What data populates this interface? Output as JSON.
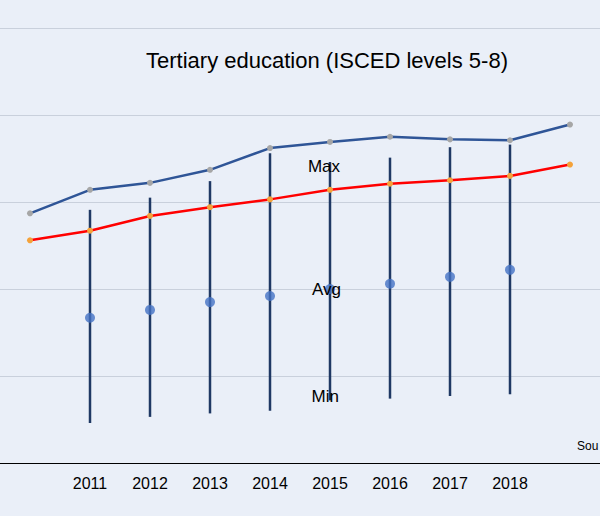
{
  "chart_data": {
    "type": "line",
    "title": "Tertiary education (ISCED levels 5-8)",
    "categories": [
      null,
      2011,
      2012,
      2013,
      2014,
      2015,
      2016,
      2017,
      2018,
      null
    ],
    "ylim": [
      0,
      50
    ],
    "yticks": [
      0,
      10,
      20,
      30,
      40,
      50
    ],
    "grid": true,
    "tick_labels": "x",
    "annotations": [
      "Max",
      "Avg",
      "Min",
      "Sou"
    ],
    "series": [
      {
        "type": "line",
        "color": "#2f5597",
        "marker": "circle",
        "values": [
          28.7,
          31.4,
          32.2,
          33.7,
          36.2,
          36.9,
          37.5,
          37.2,
          37.1,
          38.9
        ]
      },
      {
        "type": "line",
        "color": "#ff0000",
        "marker": "circle",
        "values": [
          25.6,
          26.7,
          28.4,
          29.4,
          30.3,
          31.4,
          32.1,
          32.5,
          33.0,
          34.3
        ]
      },
      {
        "type": "scatter",
        "color": "#4472c4",
        "marker": "circle",
        "values": [
          null,
          16.7,
          17.6,
          18.5,
          19.2,
          20.0,
          20.6,
          21.4,
          22.2,
          null
        ],
        "low": [
          null,
          4.6,
          5.3,
          5.7,
          6.0,
          7.2,
          7.4,
          7.7,
          7.9,
          null
        ],
        "high": [
          null,
          29.1,
          30.5,
          32.4,
          35.6,
          34.6,
          35.1,
          36.3,
          36.6,
          null
        ]
      }
    ]
  }
}
